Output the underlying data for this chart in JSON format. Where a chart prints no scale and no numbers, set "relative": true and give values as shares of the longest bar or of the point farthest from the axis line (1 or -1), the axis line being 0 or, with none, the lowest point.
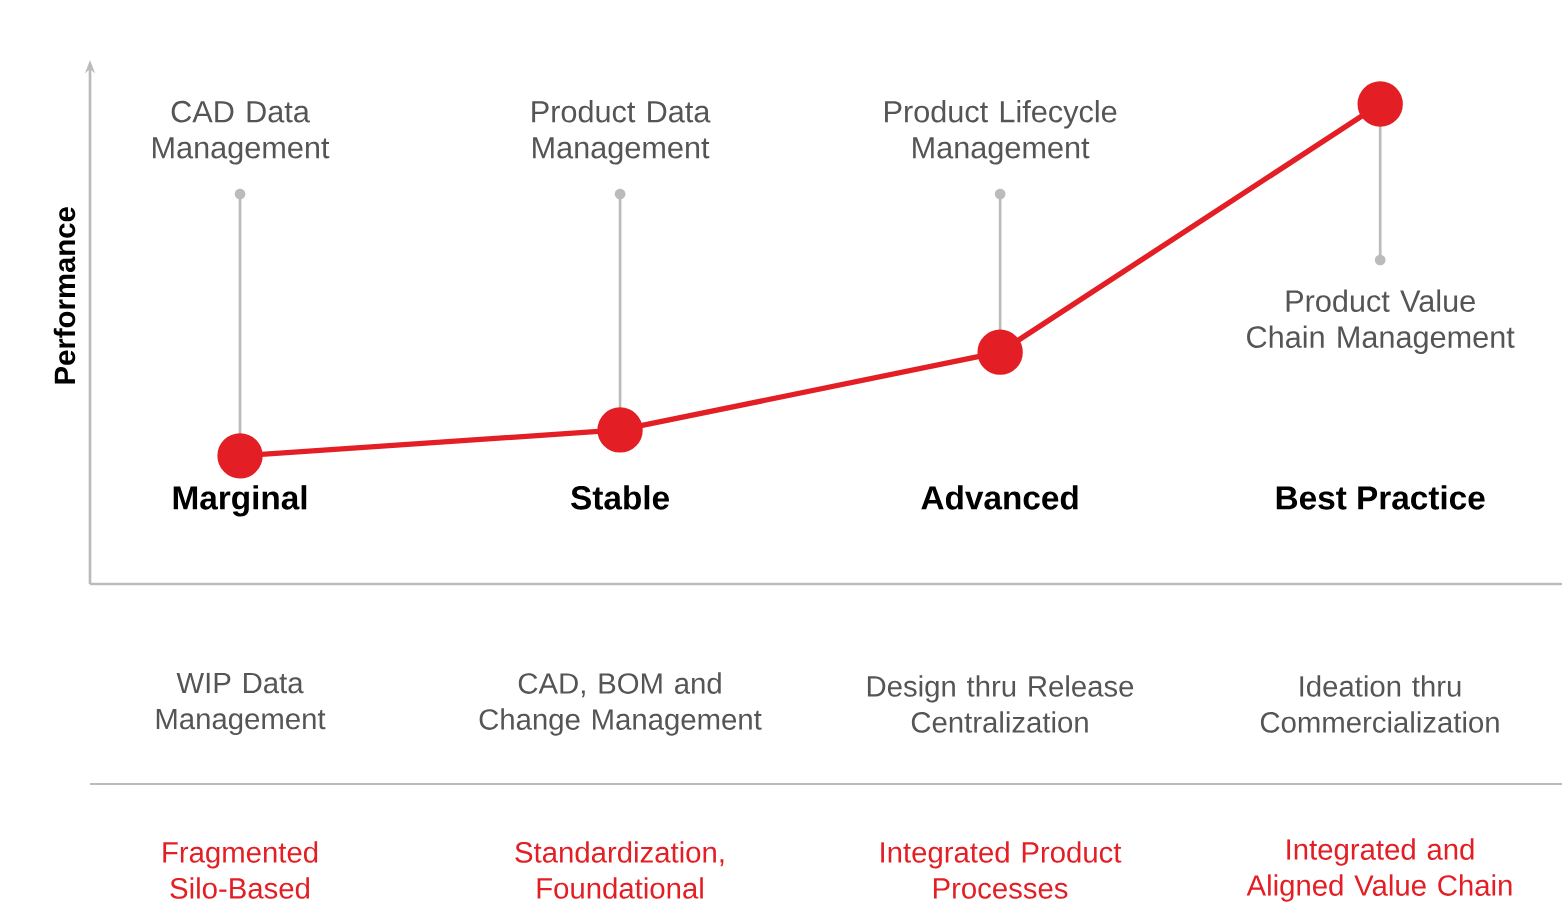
{
  "chart_data": {
    "type": "line",
    "relative": true,
    "color": "#e31e24",
    "marker": "circle",
    "ylabel": "Performance",
    "categories": [
      "Marginal",
      "Stable",
      "Advanced",
      "Best Practice"
    ],
    "values": [
      0.267,
      0.321,
      0.483,
      1
    ],
    "annotations": [
      {
        "text": "CAD Data Management",
        "x": "Marginal",
        "y": 0.267
      },
      {
        "text": "Product Data Management",
        "x": "Stable",
        "y": 0.321
      },
      {
        "text": "Product Lifecycle Management",
        "x": "Advanced",
        "y": 0.483
      },
      {
        "text": "Product Value Chain Management",
        "x": "Best Practice",
        "y": 1
      },
      "WIP Data Management",
      "CAD, BOM and Change Management",
      "Design thru Release Centralization",
      "Ideation thru Commercialization",
      "Fragmented Silo-Based",
      "Standardization, Foundational",
      "Integrated Product Processes",
      "Integrated and Aligned Value Chain"
    ]
  }
}
